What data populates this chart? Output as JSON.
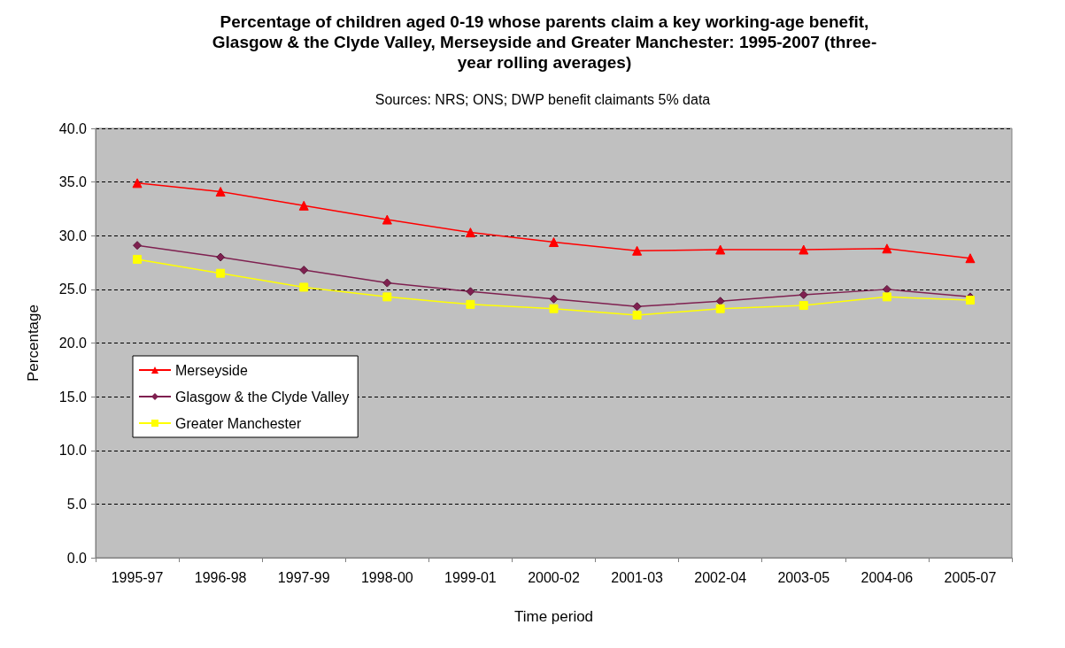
{
  "chart_data": {
    "type": "line",
    "title": "Percentage of children aged 0-19 whose parents claim a key working-age benefit,\nGlasgow & the Clyde Valley, Merseyside and Greater Manchester: 1995-2007 (three-\nyear rolling averages)",
    "subtitle": "Sources: NRS; ONS; DWP benefit claimants 5% data",
    "xlabel": "Time period",
    "ylabel": "Percentage",
    "categories": [
      "1995-97",
      "1996-98",
      "1997-99",
      "1998-00",
      "1999-01",
      "2000-02",
      "2001-03",
      "2002-04",
      "2003-05",
      "2004-06",
      "2005-07"
    ],
    "series": [
      {
        "name": "Merseyside",
        "color": "#ff0000",
        "marker": "triangle",
        "values": [
          34.9,
          34.1,
          32.8,
          31.5,
          30.3,
          29.4,
          28.6,
          28.7,
          28.7,
          28.8,
          27.9
        ]
      },
      {
        "name": "Glasgow & the Clyde Valley",
        "color": "#7f2050",
        "marker": "diamond",
        "values": [
          29.1,
          28.0,
          26.8,
          25.6,
          24.8,
          24.1,
          23.4,
          23.9,
          24.5,
          25.0,
          24.3
        ]
      },
      {
        "name": "Greater Manchester",
        "color": "#ffff00",
        "marker": "square",
        "values": [
          27.8,
          26.5,
          25.2,
          24.3,
          23.6,
          23.2,
          22.6,
          23.2,
          23.5,
          24.3,
          24.0
        ]
      }
    ],
    "ylim": [
      0,
      40
    ],
    "yticks": [
      {
        "value": 0,
        "label": "0.0"
      },
      {
        "value": 5,
        "label": "5.0"
      },
      {
        "value": 10,
        "label": "10.0"
      },
      {
        "value": 15,
        "label": "15.0"
      },
      {
        "value": 20,
        "label": "20.0"
      },
      {
        "value": 25,
        "label": "25.0"
      },
      {
        "value": 30,
        "label": "30.0"
      },
      {
        "value": 35,
        "label": "35.0"
      },
      {
        "value": 40,
        "label": "40.0"
      }
    ],
    "grid": "y",
    "legend": "left",
    "line_style": "solid"
  }
}
